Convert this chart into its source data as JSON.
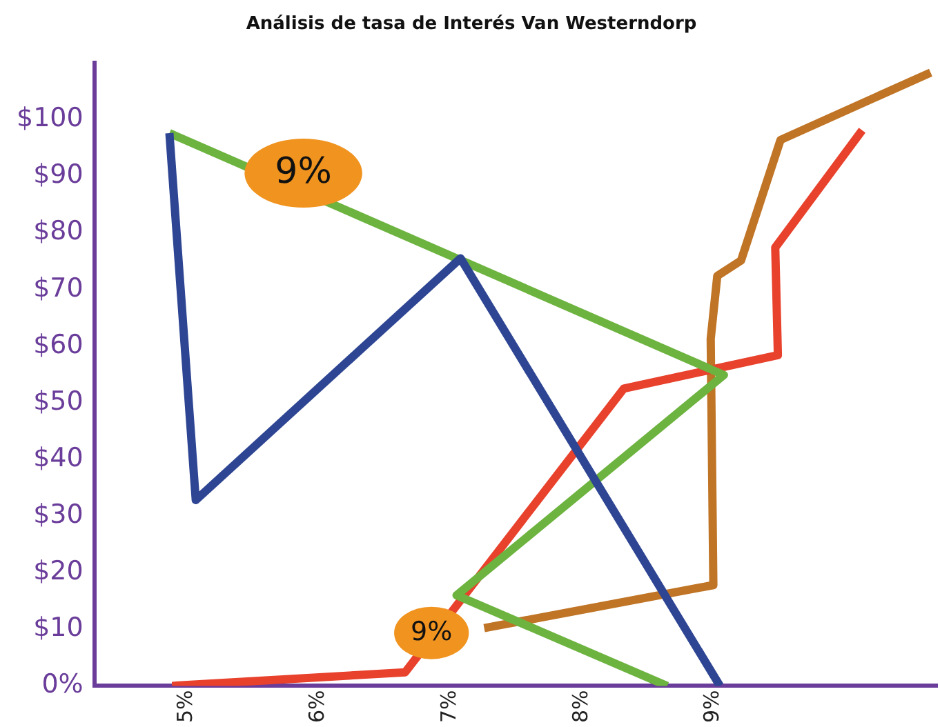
{
  "chart_data": {
    "type": "line",
    "title": "Análisis de tasa de Interés Van Westerndorp",
    "xlim": [
      4.3,
      10.7
    ],
    "xticks": [
      {
        "value": 5,
        "label": "5%"
      },
      {
        "value": 6,
        "label": "6%"
      },
      {
        "value": 7,
        "label": "7%"
      },
      {
        "value": 8,
        "label": "8%"
      },
      {
        "value": 9,
        "label": "9%"
      }
    ],
    "ylim": [
      0,
      110
    ],
    "yticks": [
      {
        "value": 0,
        "label": "0%"
      },
      {
        "value": 10,
        "label": "$10"
      },
      {
        "value": 20,
        "label": "$20"
      },
      {
        "value": 30,
        "label": "$30"
      },
      {
        "value": 40,
        "label": "$40"
      },
      {
        "value": 50,
        "label": "$50"
      },
      {
        "value": 60,
        "label": "$60"
      },
      {
        "value": 70,
        "label": "$70"
      },
      {
        "value": 80,
        "label": "$80"
      },
      {
        "value": 90,
        "label": "$90"
      },
      {
        "value": 100,
        "label": "$100"
      }
    ],
    "grid": false,
    "legend": false,
    "marker": "none",
    "line_style": "solid",
    "series": [
      {
        "color": "#2e4593",
        "x": [
          4.87,
          5.07,
          7.08,
          9.05
        ],
        "values": [
          97.6,
          32.8,
          75.5,
          0
        ]
      },
      {
        "color": "#6db33f",
        "x": [
          4.87,
          9.08,
          7.05,
          8.65
        ],
        "values": [
          97.6,
          54.9,
          16,
          0
        ]
      },
      {
        "color": "#e8412c",
        "x": [
          4.89,
          6.66,
          8.32,
          9.49,
          9.47,
          10.13
        ],
        "values": [
          0,
          2.4,
          52.5,
          58.4,
          77.4,
          98.1
        ]
      },
      {
        "color": "#c07425",
        "x": [
          7.26,
          9.0,
          8.98,
          9.03,
          9.21,
          9.51,
          10.65
        ],
        "values": [
          10.2,
          17.8,
          61.3,
          72.4,
          75.1,
          96.4,
          108.3
        ]
      }
    ],
    "annotations": [
      "9%",
      "9%"
    ]
  }
}
